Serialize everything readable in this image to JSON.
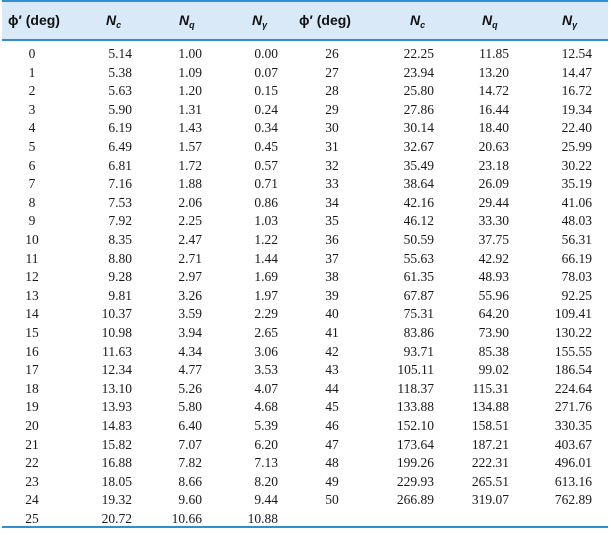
{
  "headers": {
    "phi_left": "ϕ′ (deg)",
    "nc_left": "Nc",
    "nq_left": "Nq",
    "ng_left": "Nγ",
    "phi_right": "ϕ′ (deg)",
    "nc_right": "Nc",
    "nq_right": "Nq",
    "ng_right": "Nγ"
  },
  "left_rows": [
    [
      "0",
      "5.14",
      "1.00",
      "0.00"
    ],
    [
      "1",
      "5.38",
      "1.09",
      "0.07"
    ],
    [
      "2",
      "5.63",
      "1.20",
      "0.15"
    ],
    [
      "3",
      "5.90",
      "1.31",
      "0.24"
    ],
    [
      "4",
      "6.19",
      "1.43",
      "0.34"
    ],
    [
      "5",
      "6.49",
      "1.57",
      "0.45"
    ],
    [
      "6",
      "6.81",
      "1.72",
      "0.57"
    ],
    [
      "7",
      "7.16",
      "1.88",
      "0.71"
    ],
    [
      "8",
      "7.53",
      "2.06",
      "0.86"
    ],
    [
      "9",
      "7.92",
      "2.25",
      "1.03"
    ],
    [
      "10",
      "8.35",
      "2.47",
      "1.22"
    ],
    [
      "11",
      "8.80",
      "2.71",
      "1.44"
    ],
    [
      "12",
      "9.28",
      "2.97",
      "1.69"
    ],
    [
      "13",
      "9.81",
      "3.26",
      "1.97"
    ],
    [
      "14",
      "10.37",
      "3.59",
      "2.29"
    ],
    [
      "15",
      "10.98",
      "3.94",
      "2.65"
    ],
    [
      "16",
      "11.63",
      "4.34",
      "3.06"
    ],
    [
      "17",
      "12.34",
      "4.77",
      "3.53"
    ],
    [
      "18",
      "13.10",
      "5.26",
      "4.07"
    ],
    [
      "19",
      "13.93",
      "5.80",
      "4.68"
    ],
    [
      "20",
      "14.83",
      "6.40",
      "5.39"
    ],
    [
      "21",
      "15.82",
      "7.07",
      "6.20"
    ],
    [
      "22",
      "16.88",
      "7.82",
      "7.13"
    ],
    [
      "23",
      "18.05",
      "8.66",
      "8.20"
    ],
    [
      "24",
      "19.32",
      "9.60",
      "9.44"
    ],
    [
      "25",
      "20.72",
      "10.66",
      "10.88"
    ]
  ],
  "right_rows": [
    [
      "26",
      "22.25",
      "11.85",
      "12.54"
    ],
    [
      "27",
      "23.94",
      "13.20",
      "14.47"
    ],
    [
      "28",
      "25.80",
      "14.72",
      "16.72"
    ],
    [
      "29",
      "27.86",
      "16.44",
      "19.34"
    ],
    [
      "30",
      "30.14",
      "18.40",
      "22.40"
    ],
    [
      "31",
      "32.67",
      "20.63",
      "25.99"
    ],
    [
      "32",
      "35.49",
      "23.18",
      "30.22"
    ],
    [
      "33",
      "38.64",
      "26.09",
      "35.19"
    ],
    [
      "34",
      "42.16",
      "29.44",
      "41.06"
    ],
    [
      "35",
      "46.12",
      "33.30",
      "48.03"
    ],
    [
      "36",
      "50.59",
      "37.75",
      "56.31"
    ],
    [
      "37",
      "55.63",
      "42.92",
      "66.19"
    ],
    [
      "38",
      "61.35",
      "48.93",
      "78.03"
    ],
    [
      "39",
      "67.87",
      "55.96",
      "92.25"
    ],
    [
      "40",
      "75.31",
      "64.20",
      "109.41"
    ],
    [
      "41",
      "83.86",
      "73.90",
      "130.22"
    ],
    [
      "42",
      "93.71",
      "85.38",
      "155.55"
    ],
    [
      "43",
      "105.11",
      "99.02",
      "186.54"
    ],
    [
      "44",
      "118.37",
      "115.31",
      "224.64"
    ],
    [
      "45",
      "133.88",
      "134.88",
      "271.76"
    ],
    [
      "46",
      "152.10",
      "158.51",
      "330.35"
    ],
    [
      "47",
      "173.64",
      "187.21",
      "403.67"
    ],
    [
      "48",
      "199.26",
      "222.31",
      "496.01"
    ],
    [
      "49",
      "229.93",
      "265.51",
      "613.16"
    ],
    [
      "50",
      "266.89",
      "319.07",
      "762.89"
    ]
  ],
  "colors": {
    "header_band": "#d9e9f7",
    "rule": "#2f8fd0"
  }
}
